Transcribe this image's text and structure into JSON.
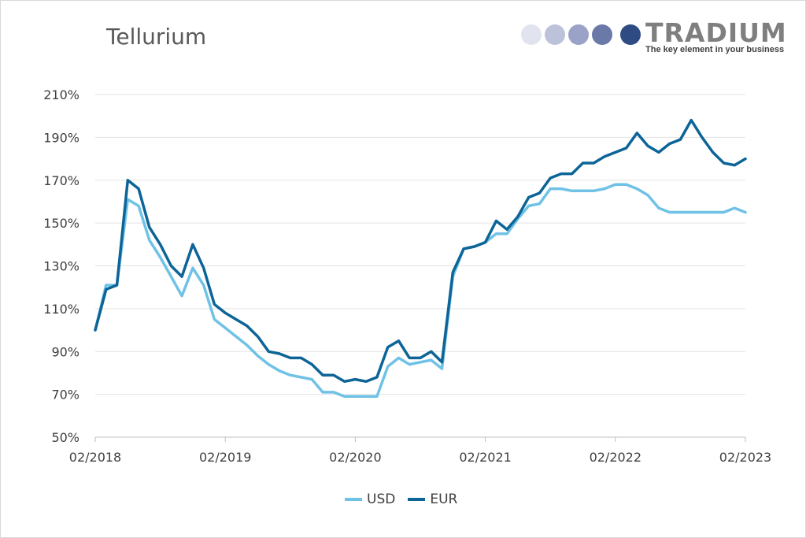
{
  "chart_data": {
    "type": "line",
    "title": "Tellurium",
    "xlabel": "",
    "ylabel": "",
    "ylim": [
      50,
      210
    ],
    "y_ticks": [
      "210%",
      "190%",
      "170%",
      "150%",
      "130%",
      "110%",
      "90%",
      "70%",
      "50%"
    ],
    "y_tick_values": [
      210,
      190,
      170,
      150,
      130,
      110,
      90,
      70,
      50
    ],
    "x_tick_labels": [
      "02/2018",
      "02/2019",
      "02/2020",
      "02/2021",
      "02/2022",
      "02/2023"
    ],
    "x": [
      "2018-02",
      "2018-03",
      "2018-04",
      "2018-05",
      "2018-06",
      "2018-07",
      "2018-08",
      "2018-09",
      "2018-10",
      "2018-11",
      "2018-12",
      "2019-01",
      "2019-02",
      "2019-03",
      "2019-04",
      "2019-05",
      "2019-06",
      "2019-07",
      "2019-08",
      "2019-09",
      "2019-10",
      "2019-11",
      "2019-12",
      "2020-01",
      "2020-02",
      "2020-03",
      "2020-04",
      "2020-05",
      "2020-06",
      "2020-07",
      "2020-08",
      "2020-09",
      "2020-10",
      "2020-11",
      "2020-12",
      "2021-01",
      "2021-02",
      "2021-03",
      "2021-04",
      "2021-05",
      "2021-06",
      "2021-07",
      "2021-08",
      "2021-09",
      "2021-10",
      "2021-11",
      "2021-12",
      "2022-01",
      "2022-02",
      "2022-03",
      "2022-04",
      "2022-05",
      "2022-06",
      "2022-07",
      "2022-08",
      "2022-09",
      "2022-10",
      "2022-11",
      "2022-12",
      "2023-01",
      "2023-02"
    ],
    "grid": true,
    "legend_position": "bottom-center",
    "series": [
      {
        "name": "USD",
        "color": "#6fc2e6",
        "values": [
          100,
          121,
          121,
          161,
          158,
          142,
          134,
          125,
          116,
          129,
          121,
          105,
          101,
          97,
          93,
          88,
          84,
          81,
          79,
          78,
          77,
          71,
          71,
          69,
          69,
          69,
          69,
          83,
          87,
          84,
          85,
          86,
          82,
          125,
          138,
          139,
          141,
          145,
          145,
          152,
          158,
          159,
          166,
          166,
          165,
          165,
          165,
          166,
          168,
          168,
          166,
          163,
          157,
          155,
          155,
          155,
          155,
          155,
          155,
          157,
          155
        ]
      },
      {
        "name": "EUR",
        "color": "#0c6497",
        "values": [
          100,
          119,
          121,
          170,
          166,
          148,
          140,
          130,
          125,
          140,
          129,
          112,
          108,
          105,
          102,
          97,
          90,
          89,
          87,
          87,
          84,
          79,
          79,
          76,
          77,
          76,
          78,
          92,
          95,
          87,
          87,
          90,
          85,
          127,
          138,
          139,
          141,
          151,
          147,
          153,
          162,
          164,
          171,
          173,
          173,
          178,
          178,
          181,
          183,
          185,
          192,
          186,
          183,
          187,
          189,
          198,
          190,
          183,
          178,
          177,
          180
        ]
      }
    ]
  },
  "legend": {
    "usd_label": "USD",
    "eur_label": "EUR"
  },
  "logo": {
    "name": "TRADIUM",
    "tagline": "The key element in your business",
    "dot_colors": [
      "#e1e4ee",
      "#bcc2da",
      "#9aa3c7",
      "#6b79a9",
      "#2f4b84"
    ]
  }
}
